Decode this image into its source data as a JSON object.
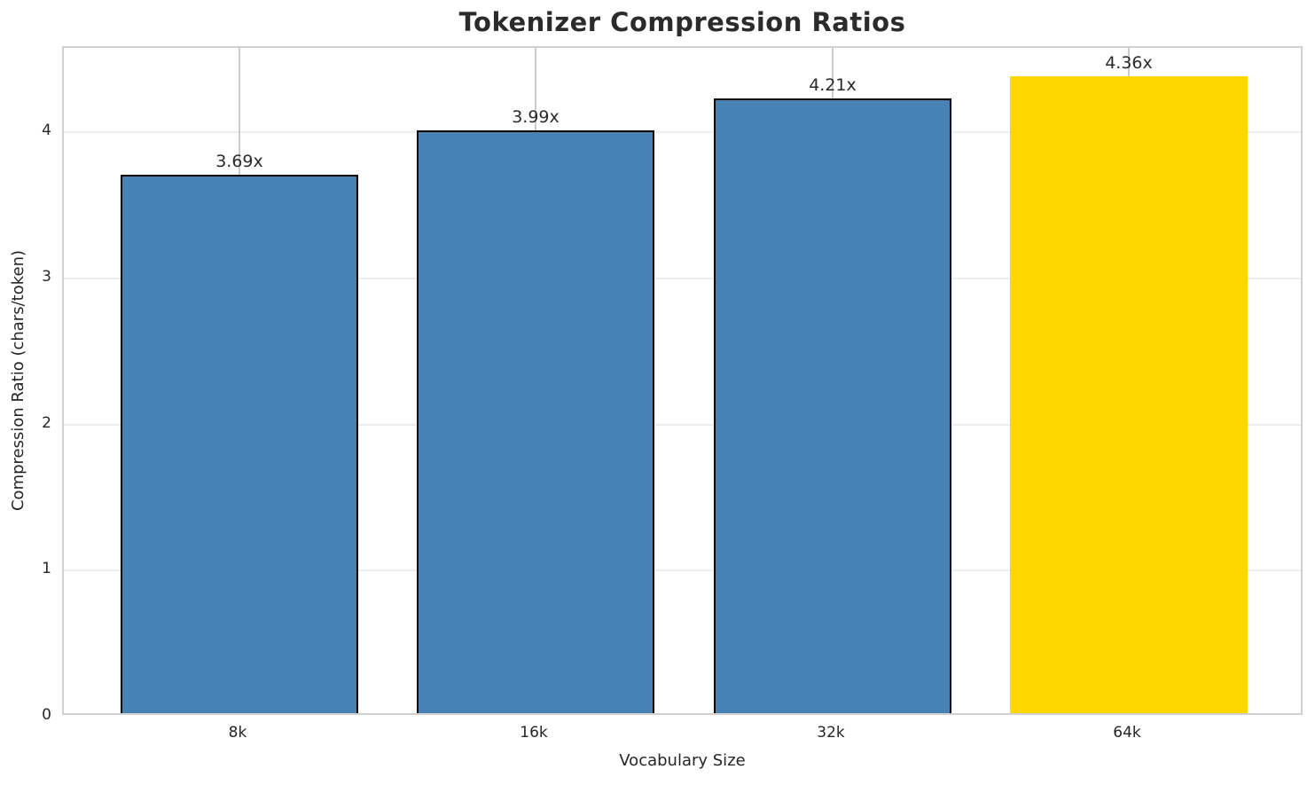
{
  "chart_data": {
    "type": "bar",
    "title": "Tokenizer Compression Ratios",
    "xlabel": "Vocabulary Size",
    "ylabel": "Compression Ratio (chars/token)",
    "categories": [
      "8k",
      "16k",
      "32k",
      "64k"
    ],
    "values": [
      3.69,
      3.99,
      4.21,
      4.36
    ],
    "bar_labels": [
      "3.69x",
      "3.99x",
      "4.21x",
      "4.36x"
    ],
    "yticks": [
      0,
      1,
      2,
      3,
      4
    ],
    "ylim": [
      0,
      4.58
    ],
    "grid": "both",
    "legend": "none",
    "base_color": "#4682B4",
    "highlight_color": "#FFD700",
    "bar_colors": [
      "#4682B4",
      "#4682B4",
      "#4682B4",
      "#FFD700"
    ],
    "bar_edge_colors": [
      "#000000",
      "#000000",
      "#000000",
      "none"
    ],
    "spine_color": "#d0d0d0",
    "text_color": "#262626"
  }
}
